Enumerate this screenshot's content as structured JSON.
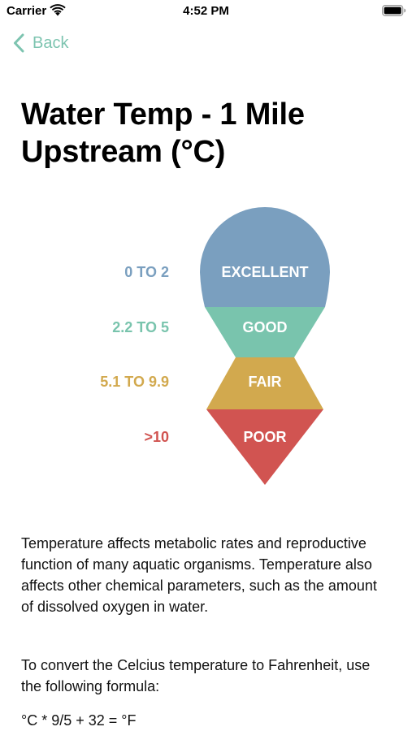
{
  "status_bar": {
    "carrier": "Carrier",
    "time": "4:52 PM"
  },
  "nav": {
    "back_label": "Back"
  },
  "page": {
    "title": "Water Temp - 1 Mile Upstream (°C)"
  },
  "quality_scale": {
    "bands": [
      {
        "range": "0 TO 2",
        "rating": "EXCELLENT",
        "color": "#7a9fbf"
      },
      {
        "range": "2.2 TO 5",
        "rating": "GOOD",
        "color": "#79c4ad"
      },
      {
        "range": "5.1 TO 9.9",
        "rating": "FAIR",
        "color": "#d2a94e"
      },
      {
        "range": ">10",
        "rating": "POOR",
        "color": "#d15451"
      }
    ]
  },
  "description": {
    "paragraph1": "Temperature affects metabolic rates and reproductive function of many aquatic organisms. Temperature also affects other chemical parameters, such as the amount of dissolved oxygen in water.",
    "paragraph2": "To convert the Celcius temperature to Fahrenheit, use the following formula:",
    "formula": "°C * 9/5 + 32 = °F"
  },
  "colors": {
    "accent": "#7dc4b0"
  }
}
